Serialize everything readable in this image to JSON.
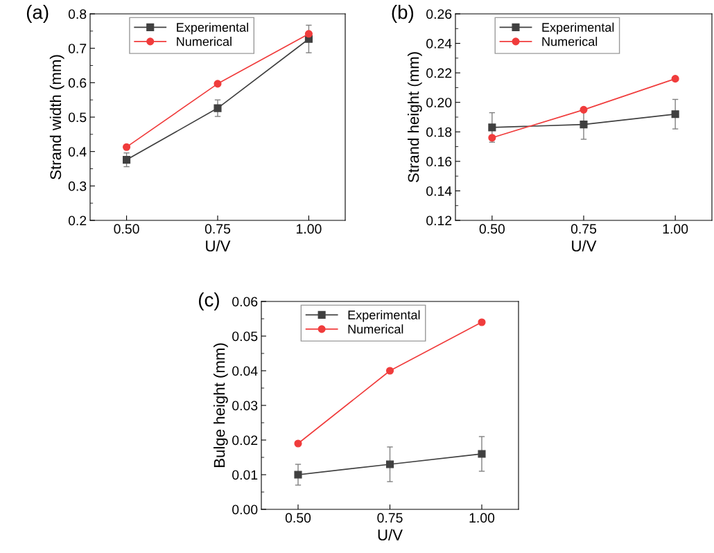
{
  "chart_data": [
    {
      "type": "line",
      "xlabel": "U/V",
      "ylabel": "Strand width (mm)",
      "annotations": [
        "(a)"
      ],
      "x": [
        0.5,
        0.75,
        1.0
      ],
      "xlim": [
        0.4,
        1.1
      ],
      "xticks": [
        {
          "value": 0.5,
          "label": "0.50"
        },
        {
          "value": 0.75,
          "label": "0.75"
        },
        {
          "value": 1.0,
          "label": "1.00"
        }
      ],
      "ylim": [
        0.2,
        0.8
      ],
      "yticks": [
        0.2,
        0.3,
        0.4,
        0.5,
        0.6,
        0.7,
        0.8
      ],
      "legend": "top left",
      "grid": false,
      "series": [
        {
          "name": "Experimental",
          "color": "#404040",
          "marker": "square",
          "values": [
            0.376,
            0.526,
            0.727
          ],
          "errors": [
            0.02,
            0.024,
            0.04
          ]
        },
        {
          "name": "Numerical",
          "color": "#f03c3c",
          "marker": "circle",
          "values": [
            0.413,
            0.597,
            0.742
          ]
        }
      ]
    },
    {
      "type": "line",
      "xlabel": "U/V",
      "ylabel": "Strand height (mm)",
      "annotations": [
        "(b)"
      ],
      "x": [
        0.5,
        0.75,
        1.0
      ],
      "xlim": [
        0.4,
        1.1
      ],
      "xticks": [
        {
          "value": 0.5,
          "label": "0.50"
        },
        {
          "value": 0.75,
          "label": "0.75"
        },
        {
          "value": 1.0,
          "label": "1.00"
        }
      ],
      "ylim": [
        0.12,
        0.26
      ],
      "yticks": [
        0.12,
        0.14,
        0.16,
        0.18,
        {
          "value": 0.2,
          "label": "0.20"
        },
        0.22,
        0.24,
        0.26
      ],
      "legend": "top left",
      "grid": false,
      "series": [
        {
          "name": "Experimental",
          "color": "#404040",
          "marker": "square",
          "values": [
            0.183,
            0.185,
            0.192
          ],
          "errors": [
            0.01,
            0.01,
            0.01
          ]
        },
        {
          "name": "Numerical",
          "color": "#f03c3c",
          "marker": "circle",
          "values": [
            0.176,
            0.195,
            0.216
          ]
        }
      ]
    },
    {
      "type": "line",
      "xlabel": "U/V",
      "ylabel": "Bulge height (mm)",
      "annotations": [
        "(c)"
      ],
      "x": [
        0.5,
        0.75,
        1.0
      ],
      "xlim": [
        0.4,
        1.1
      ],
      "xticks": [
        {
          "value": 0.5,
          "label": "0.50"
        },
        {
          "value": 0.75,
          "label": "0.75"
        },
        {
          "value": 1.0,
          "label": "1.00"
        }
      ],
      "ylim": [
        0.0,
        0.06
      ],
      "yticks": [
        {
          "value": 0.0,
          "label": "0.00"
        },
        0.01,
        0.02,
        0.03,
        0.04,
        0.05,
        0.06
      ],
      "legend": "top left",
      "grid": false,
      "series": [
        {
          "name": "Experimental",
          "color": "#404040",
          "marker": "square",
          "values": [
            0.01,
            0.013,
            0.016
          ],
          "errors": [
            0.003,
            0.005,
            0.005
          ]
        },
        {
          "name": "Numerical",
          "color": "#f03c3c",
          "marker": "circle",
          "values": [
            0.019,
            0.04,
            0.054
          ]
        }
      ]
    }
  ]
}
